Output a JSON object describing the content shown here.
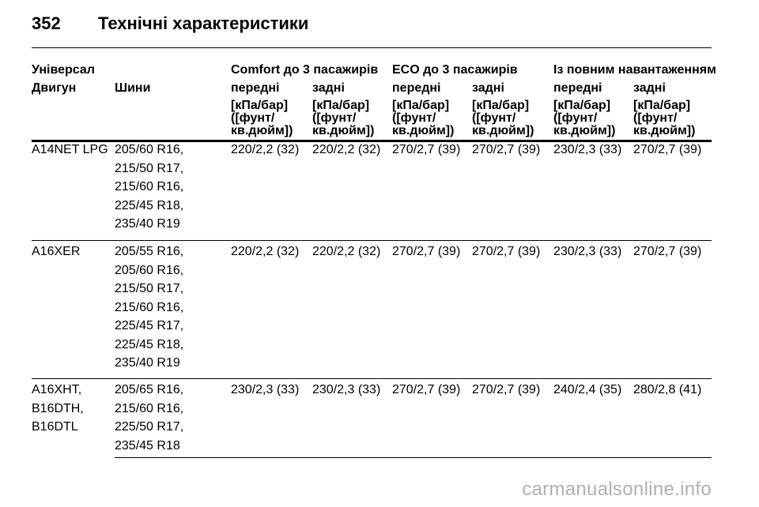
{
  "page": {
    "number": "352",
    "title": "Технічні характеристики"
  },
  "header": {
    "universal": "Універсал",
    "engine": "Двигун",
    "tyres": "Шини",
    "groups": [
      "Comfort до 3 пасажирів",
      "ECO до 3 пасажирів",
      "Із повним навантаженням"
    ],
    "front": "передні",
    "rear": "задні",
    "unit_l1": "[кПа/бар]",
    "unit_l2": "([фунт/",
    "unit_l3": "кв.дюйм])"
  },
  "rows": [
    {
      "engines": [
        "A14NET LPG"
      ],
      "tyres": [
        "205/60 R16,",
        "215/50 R17,",
        "215/60 R16,",
        "225/45 R18,",
        "235/40 R19"
      ],
      "pressures": [
        "220/2,2 (32)",
        "220/2,2 (32)",
        "270/2,7 (39)",
        "270/2,7 (39)",
        "230/2,3 (33)",
        "270/2,7 (39)"
      ]
    },
    {
      "engines": [
        "A16XER"
      ],
      "tyres": [
        "205/55 R16,",
        "205/60 R16,",
        "215/50 R17,",
        "215/60 R16,",
        "225/45 R17,",
        "225/45 R18,",
        "235/40 R19"
      ],
      "pressures": [
        "220/2,2 (32)",
        "220/2,2 (32)",
        "270/2,7 (39)",
        "270/2,7 (39)",
        "230/2,3 (33)",
        "270/2,7 (39)"
      ]
    },
    {
      "engines": [
        "A16XHT,",
        "B16DTH,",
        "B16DTL"
      ],
      "tyres": [
        "205/65 R16,",
        "215/60 R16,",
        "225/50 R17,",
        "235/45 R18"
      ],
      "pressures": [
        "230/2,3 (33)",
        "230/2,3 (33)",
        "270/2,7 (39)",
        "270/2,7 (39)",
        "240/2,4 (35)",
        "280/2,8 (41)"
      ]
    }
  ],
  "watermark": "carmanualsonline.info"
}
